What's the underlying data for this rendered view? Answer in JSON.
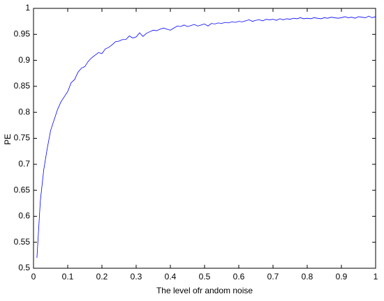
{
  "chart_data": {
    "type": "line",
    "xlabel": "The level ofr andom noise",
    "ylabel": "PE",
    "xlim": [
      0,
      1
    ],
    "ylim": [
      0.5,
      1
    ],
    "xticks": [
      0,
      0.1,
      0.2,
      0.3,
      0.4,
      0.5,
      0.6,
      0.7,
      0.8,
      0.9,
      1
    ],
    "yticks": [
      0.5,
      0.55,
      0.6,
      0.65,
      0.7,
      0.75,
      0.8,
      0.85,
      0.9,
      0.95,
      1
    ],
    "grid": false,
    "series": [
      {
        "color": "#0000ff",
        "x": [
          0.01,
          0.02,
          0.03,
          0.04,
          0.05,
          0.06,
          0.07,
          0.08,
          0.09,
          0.1,
          0.11,
          0.12,
          0.13,
          0.14,
          0.15,
          0.16,
          0.17,
          0.18,
          0.19,
          0.2,
          0.21,
          0.22,
          0.23,
          0.24,
          0.25,
          0.26,
          0.27,
          0.28,
          0.29,
          0.3,
          0.31,
          0.32,
          0.33,
          0.34,
          0.35,
          0.36,
          0.37,
          0.38,
          0.39,
          0.4,
          0.41,
          0.42,
          0.43,
          0.44,
          0.45,
          0.46,
          0.47,
          0.48,
          0.49,
          0.5,
          0.51,
          0.52,
          0.53,
          0.54,
          0.55,
          0.56,
          0.57,
          0.58,
          0.59,
          0.6,
          0.61,
          0.62,
          0.63,
          0.64,
          0.65,
          0.66,
          0.67,
          0.68,
          0.69,
          0.7,
          0.71,
          0.72,
          0.73,
          0.74,
          0.75,
          0.76,
          0.77,
          0.78,
          0.79,
          0.8,
          0.81,
          0.82,
          0.83,
          0.84,
          0.85,
          0.86,
          0.87,
          0.88,
          0.89,
          0.9,
          0.91,
          0.92,
          0.93,
          0.94,
          0.95,
          0.96,
          0.97,
          0.98,
          0.99,
          1
        ],
        "values": [
          0.52,
          0.63,
          0.69,
          0.73,
          0.765,
          0.785,
          0.805,
          0.82,
          0.83,
          0.84,
          0.857,
          0.863,
          0.877,
          0.885,
          0.888,
          0.898,
          0.905,
          0.91,
          0.915,
          0.913,
          0.922,
          0.925,
          0.93,
          0.936,
          0.937,
          0.94,
          0.94,
          0.947,
          0.943,
          0.945,
          0.953,
          0.946,
          0.952,
          0.955,
          0.958,
          0.957,
          0.96,
          0.962,
          0.96,
          0.958,
          0.962,
          0.966,
          0.965,
          0.968,
          0.965,
          0.967,
          0.969,
          0.966,
          0.968,
          0.97,
          0.966,
          0.971,
          0.97,
          0.972,
          0.971,
          0.973,
          0.972,
          0.974,
          0.973,
          0.975,
          0.974,
          0.976,
          0.978,
          0.975,
          0.977,
          0.978,
          0.976,
          0.979,
          0.978,
          0.979,
          0.977,
          0.98,
          0.978,
          0.98,
          0.979,
          0.981,
          0.98,
          0.982,
          0.98,
          0.981,
          0.98,
          0.982,
          0.981,
          0.98,
          0.982,
          0.981,
          0.983,
          0.982,
          0.981,
          0.982,
          0.984,
          0.982,
          0.983,
          0.981,
          0.984,
          0.983,
          0.982,
          0.985,
          0.982,
          0.984
        ]
      }
    ]
  }
}
